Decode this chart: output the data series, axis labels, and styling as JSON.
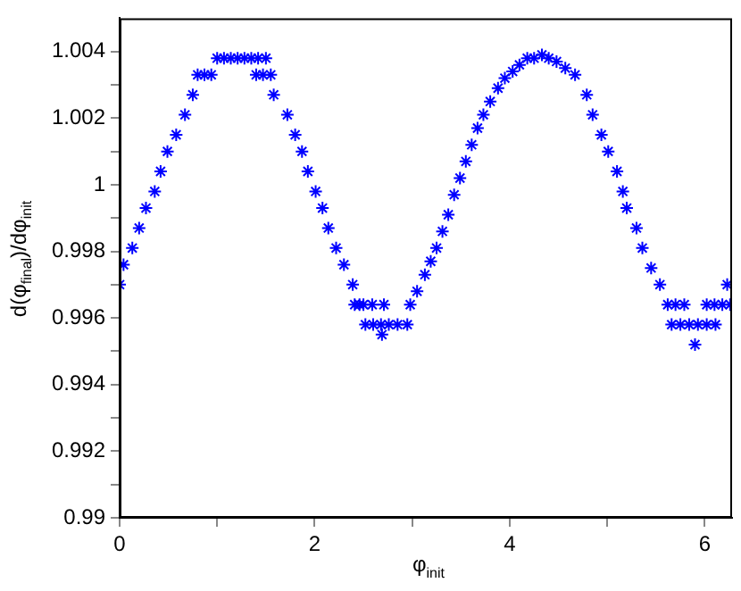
{
  "chart_data": {
    "type": "scatter",
    "xlabel": "φ$_{init}$",
    "ylabel": "d(φ$_{final}$)/dφ$_{init}$",
    "color": "#0000ff",
    "marker": "cross",
    "grid": false,
    "x": [
      0,
      0.04,
      0.13,
      0.2,
      0.27,
      0.36,
      0.42,
      0.49,
      0.58,
      0.67,
      0.75,
      0.8,
      0.87,
      0.94,
      1.0,
      1.07,
      1.14,
      1.21,
      1.28,
      1.35,
      1.42,
      1.5,
      1.4,
      1.47,
      1.55,
      1.58,
      1.72,
      1.8,
      1.87,
      1.93,
      2.01,
      2.08,
      2.14,
      2.22,
      2.3,
      2.39,
      2.46,
      2.41,
      2.5,
      2.59,
      2.71,
      2.52,
      2.6,
      2.68,
      2.76,
      2.85,
      2.95,
      2.69,
      2.98,
      3.05,
      3.13,
      3.19,
      3.25,
      3.31,
      3.37,
      3.43,
      3.49,
      3.55,
      3.61,
      3.67,
      3.73,
      3.8,
      3.88,
      3.95,
      4.03,
      4.1,
      4.18,
      4.25,
      4.33,
      4.4,
      4.48,
      4.57,
      4.67,
      4.79,
      4.85,
      4.94,
      5.01,
      5.1,
      5.16,
      5.2,
      5.3,
      5.36,
      5.45,
      5.54,
      5.62,
      5.7,
      5.79,
      5.66,
      5.75,
      5.84,
      5.93,
      6.02,
      6.11,
      5.9,
      6.02,
      6.1,
      6.18,
      6.26,
      6.23
    ],
    "values": [
      0.997,
      0.9976,
      0.9981,
      0.9987,
      0.9993,
      0.9998,
      1.0004,
      1.001,
      1.0015,
      1.0021,
      1.0027,
      1.0033,
      1.0033,
      1.0033,
      1.0038,
      1.0038,
      1.0038,
      1.0038,
      1.0038,
      1.0038,
      1.0038,
      1.0038,
      1.0033,
      1.0033,
      1.0033,
      1.0027,
      1.0021,
      1.0015,
      1.001,
      1.0004,
      0.9998,
      0.9993,
      0.9987,
      0.9981,
      0.9976,
      0.997,
      0.9964,
      0.9964,
      0.9964,
      0.9964,
      0.9964,
      0.9958,
      0.9958,
      0.9958,
      0.9958,
      0.9958,
      0.9958,
      0.9955,
      0.9964,
      0.9968,
      0.9973,
      0.9977,
      0.9981,
      0.9986,
      0.9991,
      0.9997,
      1.0002,
      1.0007,
      1.0012,
      1.0017,
      1.0021,
      1.0025,
      1.0029,
      1.0032,
      1.0034,
      1.0036,
      1.0038,
      1.0038,
      1.0039,
      1.0038,
      1.0037,
      1.0035,
      1.0033,
      1.0027,
      1.0021,
      1.0015,
      1.001,
      1.0004,
      0.9998,
      0.9993,
      0.9987,
      0.9981,
      0.9975,
      0.997,
      0.9964,
      0.9964,
      0.9964,
      0.9958,
      0.9958,
      0.9958,
      0.9958,
      0.9958,
      0.9958,
      0.9952,
      0.9964,
      0.9964,
      0.9964,
      0.9964,
      0.997
    ],
    "xlim": [
      0,
      6.28
    ],
    "xticks": [
      0,
      {
        "value": 1,
        "label": null
      },
      2,
      {
        "value": 3,
        "label": null
      },
      4,
      {
        "value": 5,
        "label": null
      },
      6
    ],
    "ylim": [
      0.99,
      1.005
    ],
    "yticks": [
      0.99,
      {
        "value": 0.991,
        "label": null
      },
      0.992,
      {
        "value": 0.993,
        "label": null
      },
      0.994,
      {
        "value": 0.995,
        "label": null
      },
      0.996,
      {
        "value": 0.997,
        "label": null
      },
      0.998,
      {
        "value": 0.999,
        "label": null
      },
      1,
      {
        "value": 1.001,
        "label": null
      },
      1.002,
      {
        "value": 1.003,
        "label": null
      },
      1.004
    ]
  }
}
